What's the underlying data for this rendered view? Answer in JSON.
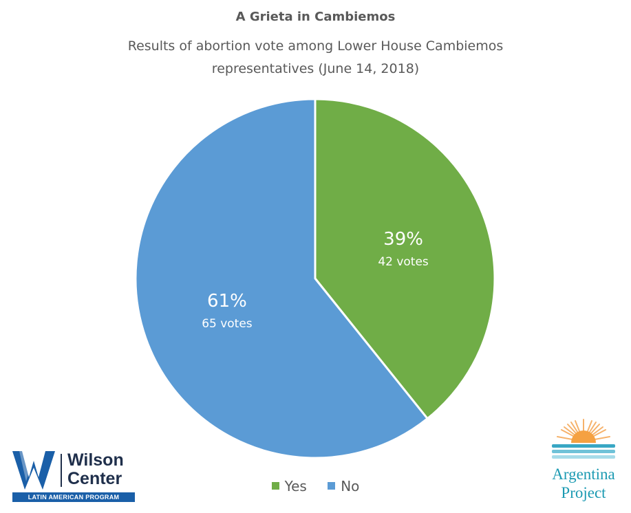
{
  "chart_data": {
    "type": "pie",
    "title": "A Grieta in Cambiemos",
    "subtitle_lines": [
      "Results of abortion vote among Lower House Cambiemos",
      "representatives (June 14, 2018)"
    ],
    "slices": [
      {
        "name": "Yes",
        "percent_label": "39%",
        "votes_label": "42 votes",
        "value": 42,
        "color": "#70ad47"
      },
      {
        "name": "No",
        "percent_label": "61%",
        "votes_label": "65 votes",
        "value": 65,
        "color": "#5b9bd5"
      }
    ],
    "start_angle_deg": 0,
    "direction": "clockwise",
    "legend": {
      "position": "bottom",
      "items": [
        "Yes",
        "No"
      ]
    }
  },
  "logos": {
    "wilson": {
      "line1": "Wilson",
      "line2": "Center",
      "program": "LATIN AMERICAN PROGRAM"
    },
    "argentina": {
      "line1": "Argentina",
      "line2": "Project"
    }
  }
}
